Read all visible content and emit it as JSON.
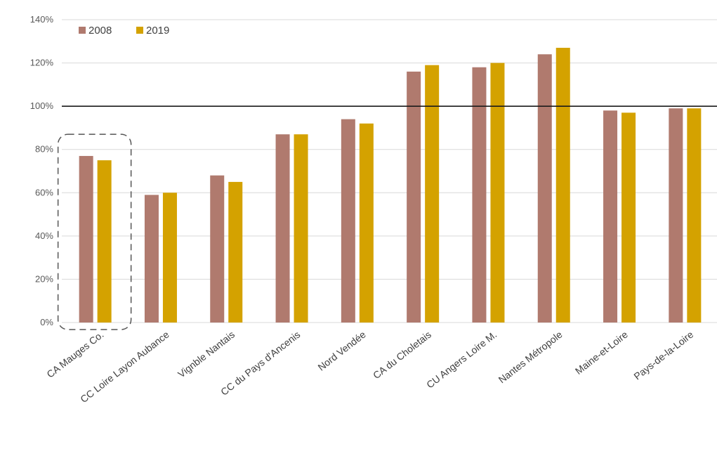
{
  "chart_data": {
    "type": "bar",
    "categories": [
      "CA Mauges Co.",
      "CC Loire Layon Aubance",
      "Vignble Nantais",
      "CC du Pays d'Ancenis",
      "Nord Vendée",
      "CA du Choletais",
      "CU Angers Loire M.",
      "Nantes Métropole",
      "Maine-et-Loire",
      "Pays-de-la-Loire"
    ],
    "series": [
      {
        "name": "2008",
        "color": "#b07a6e",
        "values": [
          0.77,
          0.59,
          0.68,
          0.87,
          0.94,
          1.16,
          1.18,
          1.24,
          0.98,
          0.99
        ]
      },
      {
        "name": "2019",
        "color": "#d4a200",
        "values": [
          0.75,
          0.6,
          0.65,
          0.87,
          0.92,
          1.19,
          1.2,
          1.27,
          0.97,
          0.99
        ]
      }
    ],
    "ylim": [
      0,
      1.4
    ],
    "yticks": [
      "0%",
      "20%",
      "40%",
      "60%",
      "80%",
      "100%",
      "120%",
      "140%"
    ],
    "reference_line": 1.0,
    "highlighted_category": "CA Mauges Co.",
    "grid": true,
    "legend_position": "top-left",
    "title": "",
    "xlabel": "",
    "ylabel": ""
  }
}
